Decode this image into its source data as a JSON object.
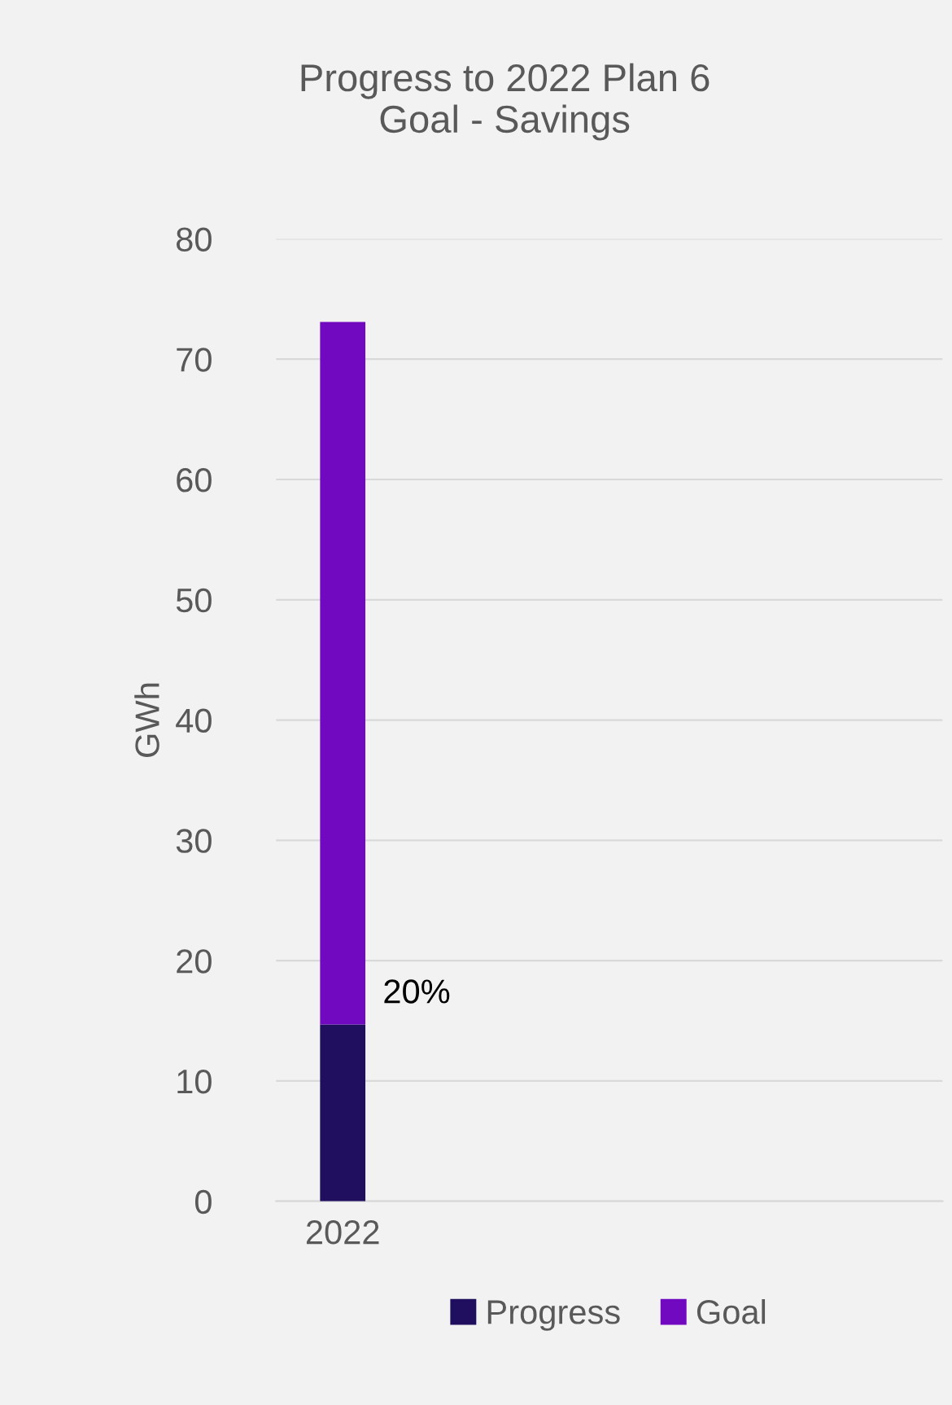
{
  "chart_data": {
    "type": "bar",
    "title": "Progress to 2022 Plan 6\nGoal - Savings",
    "ylabel": "GWh",
    "categories": [
      "2022",
      null,
      null,
      null,
      null
    ],
    "series": [
      {
        "name": "Progress",
        "color": "#1f0f5e",
        "values": [
          14.7,
          null,
          null,
          null,
          null
        ]
      },
      {
        "name": "Goal",
        "color": "#7109c0",
        "values": [
          58.4,
          null,
          null,
          null,
          null
        ]
      }
    ],
    "stacked": true,
    "annotations": [
      "20%"
    ],
    "ylim": [
      0,
      80
    ],
    "yticks": [
      0,
      10,
      20,
      30,
      40,
      50,
      60,
      70,
      80
    ],
    "grid": "y",
    "legend": "bottom"
  }
}
